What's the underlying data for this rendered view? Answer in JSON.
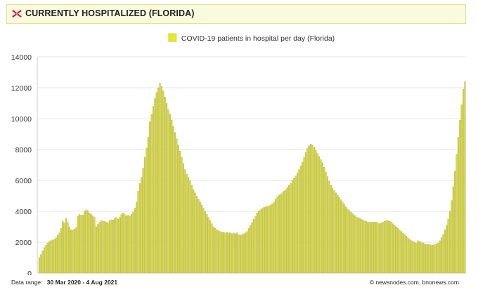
{
  "header": {
    "title": "CURRENTLY HOSPITALIZED (FLORIDA)",
    "flag_icon": "florida-flag-icon",
    "flag_colors": {
      "field": "#ffffff",
      "saltire": "#c8202f"
    }
  },
  "footer": {
    "range_label": "Data range:",
    "range_value": "30 Mar 2020  -  4 Aug 2021",
    "credit": "©  newsnodes.com, bnonews.com"
  },
  "colors": {
    "bar_fill": "#d8d84a",
    "bar_stroke": "#a9a92a",
    "legend_swatch": "#e8e81a",
    "title_bar_bg": "#fafadf",
    "title_bar_border": "#e3e38a",
    "gridline": "#e6e6e6"
  },
  "chart_data": {
    "type": "bar",
    "title": "",
    "xlabel": "",
    "ylabel": "",
    "ylim": [
      0,
      14000
    ],
    "yticks": [
      0,
      2000,
      4000,
      6000,
      8000,
      10000,
      12000,
      14000
    ],
    "grid": true,
    "legend_position": "top-center",
    "x_start": "30 Mar 2020",
    "x_end": "4 Aug 2021",
    "series": [
      {
        "name": "COVID-19 patients in hospital per day (Florida)",
        "values": [
          1000,
          1200,
          1450,
          1650,
          1800,
          1950,
          2050,
          2100,
          2150,
          2200,
          2300,
          2450,
          2600,
          2900,
          3350,
          3250,
          3550,
          3300,
          3000,
          2800,
          2800,
          2850,
          2950,
          3700,
          3800,
          3750,
          3750,
          4000,
          4100,
          4050,
          3900,
          3800,
          3700,
          3600,
          3000,
          3150,
          3300,
          3400,
          3350,
          3350,
          3300,
          3250,
          3400,
          3450,
          3450,
          3550,
          3600,
          3500,
          3600,
          3800,
          3900,
          3800,
          3700,
          3750,
          3700,
          3800,
          3950,
          4200,
          4600,
          5300,
          5800,
          6200,
          6800,
          7500,
          8100,
          8800,
          9800,
          10300,
          10800,
          11300,
          11700,
          12000,
          12300,
          12100,
          11800,
          11400,
          11000,
          10600,
          10300,
          9900,
          9500,
          9100,
          8700,
          8300,
          7900,
          7500,
          7100,
          6700,
          6400,
          6200,
          6000,
          5700,
          5400,
          5200,
          5000,
          4800,
          4600,
          4400,
          4200,
          4000,
          3800,
          3600,
          3400,
          3200,
          3000,
          2900,
          2800,
          2750,
          2700,
          2650,
          2650,
          2600,
          2650,
          2600,
          2600,
          2550,
          2600,
          2550,
          2600,
          2500,
          2450,
          2500,
          2550,
          2600,
          2700,
          2900,
          3100,
          3300,
          3500,
          3700,
          3900,
          4000,
          4100,
          4200,
          4250,
          4300,
          4300,
          4350,
          4400,
          4500,
          4600,
          4800,
          4950,
          5050,
          5100,
          5200,
          5300,
          5400,
          5550,
          5700,
          5800,
          6000,
          6150,
          6300,
          6500,
          6700,
          6950,
          7200,
          7500,
          7800,
          8100,
          8250,
          8350,
          8300,
          8150,
          7950,
          7750,
          7550,
          7350,
          7150,
          6850,
          6550,
          6250,
          5950,
          5700,
          5500,
          5350,
          5200,
          5050,
          4900,
          4750,
          4600,
          4450,
          4300,
          4150,
          4050,
          3950,
          3850,
          3750,
          3650,
          3600,
          3550,
          3500,
          3450,
          3400,
          3350,
          3300,
          3300,
          3300,
          3300,
          3300,
          3300,
          3250,
          3200,
          3250,
          3300,
          3350,
          3400,
          3400,
          3350,
          3300,
          3200,
          3100,
          3000,
          2900,
          2800,
          2700,
          2600,
          2500,
          2400,
          2300,
          2200,
          2100,
          2050,
          2000,
          1950,
          2100,
          2050,
          2000,
          1950,
          1900,
          1850,
          1850,
          1850,
          1800,
          1800,
          1850,
          1900,
          1950,
          2100,
          2300,
          2500,
          2800,
          3100,
          3500,
          4000,
          4700,
          5600,
          6600,
          7700,
          8800,
          9900,
          10900,
          11900,
          12400
        ]
      }
    ]
  }
}
